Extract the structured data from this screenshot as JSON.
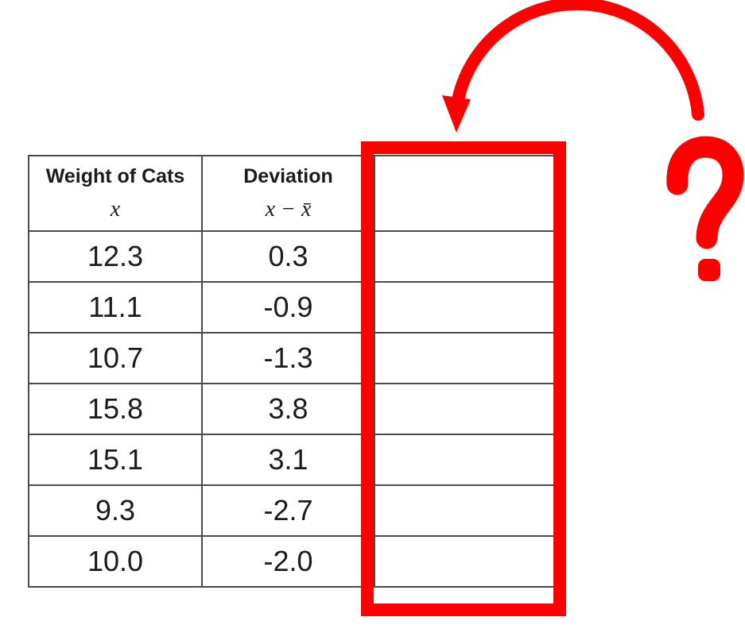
{
  "colors": {
    "accent": "#ff0000",
    "table_border": "#4a4a4a",
    "text": "#1b1b1b",
    "background": "#ffffff"
  },
  "table": {
    "columns": [
      {
        "title": "Weight of Cats",
        "formula": "x"
      },
      {
        "title": "Deviation",
        "formula": "x − x̄"
      },
      {
        "title": "",
        "formula": ""
      }
    ],
    "rows": [
      {
        "weight": "12.3",
        "deviation": "0.3",
        "answer": ""
      },
      {
        "weight": "11.1",
        "deviation": "-0.9",
        "answer": ""
      },
      {
        "weight": "10.7",
        "deviation": "-1.3",
        "answer": ""
      },
      {
        "weight": "15.8",
        "deviation": "3.8",
        "answer": ""
      },
      {
        "weight": "15.1",
        "deviation": "3.1",
        "answer": ""
      },
      {
        "weight": "9.3",
        "deviation": "-2.7",
        "answer": ""
      },
      {
        "weight": "10.0",
        "deviation": "-2.0",
        "answer": ""
      }
    ]
  },
  "annotations": {
    "question_mark": "?",
    "highlighted_region": "empty-third-column"
  }
}
